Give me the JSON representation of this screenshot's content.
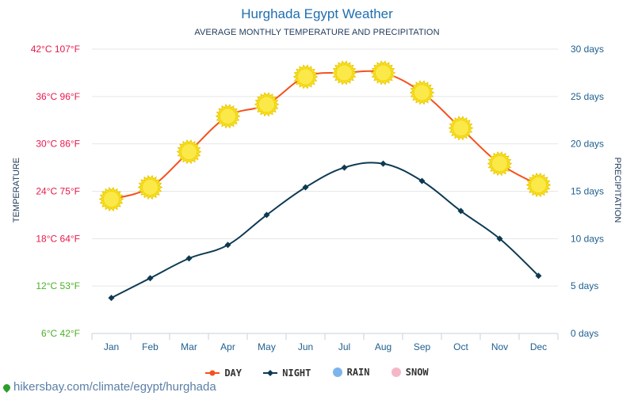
{
  "title": "Hurghada Egypt Weather",
  "subtitle": "AVERAGE MONTHLY TEMPERATURE AND PRECIPITATION",
  "footer": "hikersbay.com/climate/egypt/hurghada",
  "legend": [
    {
      "label": "DAY",
      "color": "#f4511e",
      "icon": "line-dot"
    },
    {
      "label": "NIGHT",
      "color": "#0d3a52",
      "icon": "line-diamond"
    },
    {
      "label": "RAIN",
      "color": "#7cb5ec",
      "icon": "circle"
    },
    {
      "label": "SNOW",
      "color": "#f7b6c8",
      "icon": "circle"
    }
  ],
  "chart_data": {
    "type": "line",
    "categories": [
      "Jan",
      "Feb",
      "Mar",
      "Apr",
      "May",
      "Jun",
      "Jul",
      "Aug",
      "Sep",
      "Oct",
      "Nov",
      "Dec"
    ],
    "series": [
      {
        "name": "DAY",
        "color": "#f4511e",
        "marker": "sun-icon",
        "values": [
          23,
          24.5,
          29,
          33.5,
          35,
          38.5,
          39,
          39,
          36.5,
          32,
          27.5,
          24.8
        ]
      },
      {
        "name": "NIGHT",
        "color": "#0d3a52",
        "marker": "diamond",
        "values": [
          10.5,
          13,
          15.5,
          17.2,
          21,
          24.5,
          27,
          27.5,
          25.3,
          21.5,
          18,
          13.3
        ]
      }
    ],
    "ylabel": "TEMPERATURE",
    "ylabel_right": "PRECIPITATION",
    "ylim": [
      6,
      42
    ],
    "y_ticks_left": [
      {
        "value": 42,
        "label": "42°C 107°F",
        "color": "#e8194a"
      },
      {
        "value": 36,
        "label": "36°C 96°F",
        "color": "#e8194a"
      },
      {
        "value": 30,
        "label": "30°C 86°F",
        "color": "#e8194a"
      },
      {
        "value": 24,
        "label": "24°C 75°F",
        "color": "#e8194a"
      },
      {
        "value": 18,
        "label": "18°C 64°F",
        "color": "#e8194a"
      },
      {
        "value": 12,
        "label": "12°C 53°F",
        "color": "#4caf28"
      },
      {
        "value": 6,
        "label": "6°C 42°F",
        "color": "#4caf28"
      }
    ],
    "ylim_right": [
      0,
      30
    ],
    "y_ticks_right": [
      "30 days",
      "25 days",
      "20 days",
      "15 days",
      "10 days",
      "5 days",
      "0 days"
    ],
    "grid": true,
    "legend_position": "bottom"
  }
}
